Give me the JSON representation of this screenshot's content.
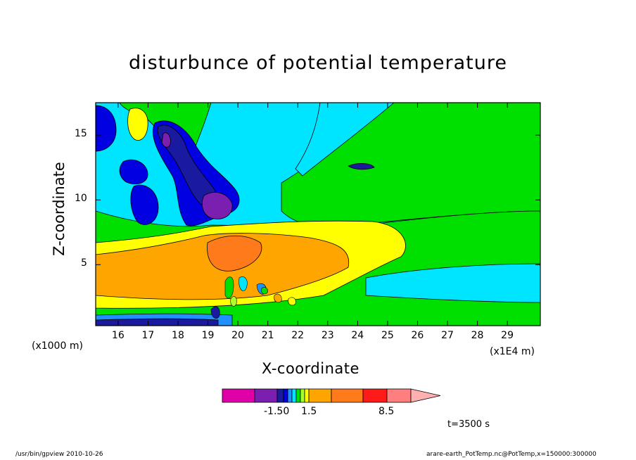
{
  "chart_data": {
    "type": "heatmap",
    "title": "disturbunce of potential temperature",
    "xlabel": "X-coordinate",
    "ylabel": "Z-coordinate",
    "x_unit_left": "(x1000 m)",
    "x_unit_right": "(x1E4 m)",
    "xlim": [
      15.25,
      30.1
    ],
    "ylim": [
      0.3,
      17.5
    ],
    "x_ticks": [
      16,
      17,
      18,
      19,
      20,
      21,
      22,
      23,
      24,
      25,
      26,
      27,
      28,
      29
    ],
    "y_ticks": [
      5,
      10,
      15
    ],
    "colorbar": {
      "levels_labels": [
        "-1.50",
        "1.5",
        "8.5"
      ],
      "colors": [
        "#e000a8",
        "#7a1fb0",
        "#1a1aa0",
        "#0000e0",
        "#1e90ff",
        "#00e5ff",
        "#00e000",
        "#a8ff2a",
        "#ffff00",
        "#ffa500",
        "#ff7a1a",
        "#ff1a1a",
        "#ff7f7f",
        "#ffb0b0"
      ]
    },
    "annotation": "t=3500 s"
  },
  "footer": {
    "left": "/usr/bin/gpview  2010-10-26",
    "right": "arare-earth_PotTemp.nc@PotTemp,x=150000:300000"
  },
  "palette": {
    "bg": "#00e5ff",
    "green": "#00e000",
    "lightgreen": "#a8ff2a",
    "yellow": "#ffff00",
    "orange": "#ffa500",
    "darkorange": "#ff7a1a",
    "blue": "#1a1aa0",
    "royal": "#0000e0",
    "purple": "#7a1fb0",
    "sky": "#1e90ff"
  }
}
